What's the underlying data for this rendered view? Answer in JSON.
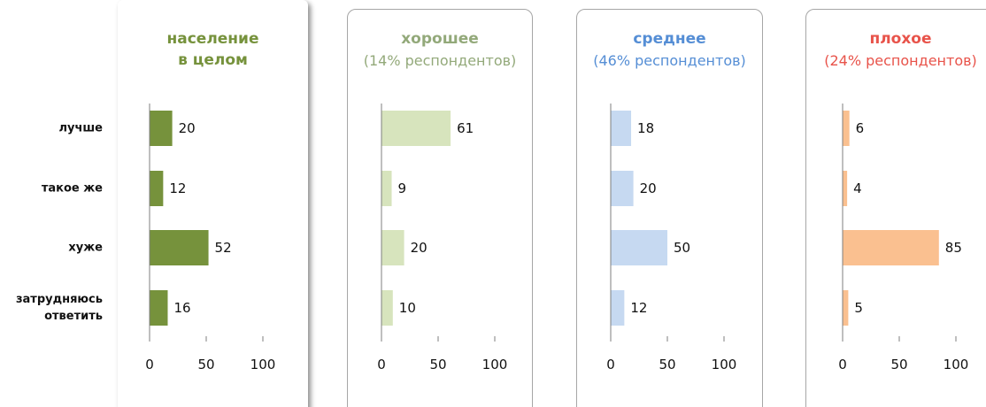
{
  "chart_data": [
    {
      "type": "bar",
      "orientation": "horizontal",
      "title": "население\nв целом",
      "title_color": "#76923c",
      "categories": [
        "лучше",
        "такое же",
        "хуже",
        "затрудняюсь\nответить"
      ],
      "values": [
        20,
        12,
        52,
        16
      ],
      "color": "#76923c",
      "xlim": [
        0,
        100
      ],
      "xticks": [
        0,
        50,
        100
      ]
    },
    {
      "type": "bar",
      "orientation": "horizontal",
      "title": "хорошее",
      "subtitle": "(14% респондентов)",
      "title_color": "#93a97a",
      "values": [
        61,
        9,
        20,
        10
      ],
      "color": "#d7e4bd",
      "xlim": [
        0,
        100
      ],
      "xticks": [
        0,
        50,
        100
      ]
    },
    {
      "type": "bar",
      "orientation": "horizontal",
      "title": "среднее",
      "subtitle": "(46% респондентов)",
      "title_color": "#558ed5",
      "values": [
        18,
        20,
        50,
        12
      ],
      "color": "#c6d9f1",
      "xlim": [
        0,
        100
      ],
      "xticks": [
        0,
        50,
        100
      ]
    },
    {
      "type": "bar",
      "orientation": "horizontal",
      "title": "плохое",
      "subtitle": "(24% респондентов)",
      "title_color": "#e8534a",
      "values": [
        6,
        4,
        85,
        5
      ],
      "color": "#fac090",
      "xlim": [
        0,
        100
      ],
      "xticks": [
        0,
        50,
        100
      ]
    }
  ]
}
